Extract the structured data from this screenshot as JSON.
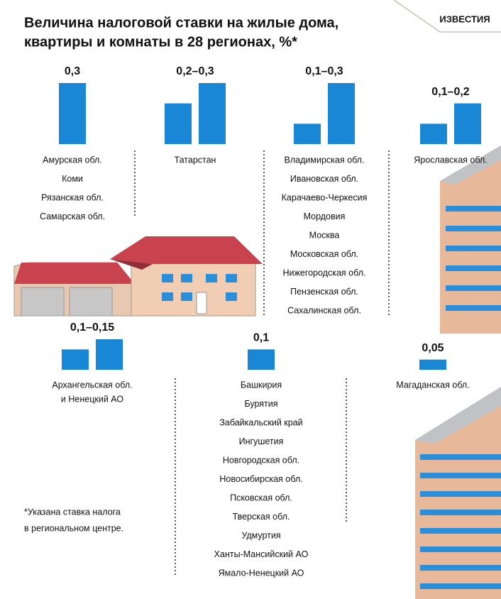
{
  "chart_data": {
    "type": "range-bars",
    "title": [
      "Величина налоговой ставки на жилые дома,",
      "квартиры и комнаты в 28 регионах, %*"
    ],
    "source": "ИЗВЕСТИЯ",
    "note": [
      "*Указана ставка налога",
      "в региональном центре."
    ],
    "color": "#1a86d6",
    "ylim": [
      0,
      0.3
    ],
    "groups": [
      {
        "label": "0,3",
        "values": [
          0.3
        ],
        "regions": [
          "Амурская обл.",
          "Коми",
          "Рязанская обл.",
          "Самарская обл."
        ]
      },
      {
        "label": "0,2–0,3",
        "values": [
          0.2,
          0.3
        ],
        "regions": [
          "Татарстан"
        ]
      },
      {
        "label": "0,1–0,3",
        "values": [
          0.1,
          0.3
        ],
        "regions": [
          "Владимирская обл.",
          "Ивановская обл.",
          "Карачаево-Черкесия",
          "Мордовия",
          "Москва",
          "Московская обл.",
          "Нижегородская обл.",
          "Пензенская обл.",
          "Сахалинская обл."
        ]
      },
      {
        "label": "0,1–0,2",
        "values": [
          0.1,
          0.2
        ],
        "regions": [
          "Ярославская обл."
        ]
      },
      {
        "label": "0,1–0,15",
        "values": [
          0.1,
          0.15
        ],
        "regions": [
          "Архангельская обл.",
          "и Ненецкий АО"
        ]
      },
      {
        "label": "0,1",
        "values": [
          0.1
        ],
        "regions": [
          "Башкирия",
          "Бурятия",
          "Забайкальский край",
          "Ингушетия",
          "Новгородская обл.",
          "Новосибирская обл.",
          "Псковская обл.",
          "Тверская обл.",
          "Удмуртия",
          "Ханты-Мансийский АО",
          "Ямало-Ненецкий АО"
        ]
      },
      {
        "label": "0,05",
        "values": [
          0.05
        ],
        "regions": [
          "Магаданская обл."
        ]
      }
    ]
  }
}
